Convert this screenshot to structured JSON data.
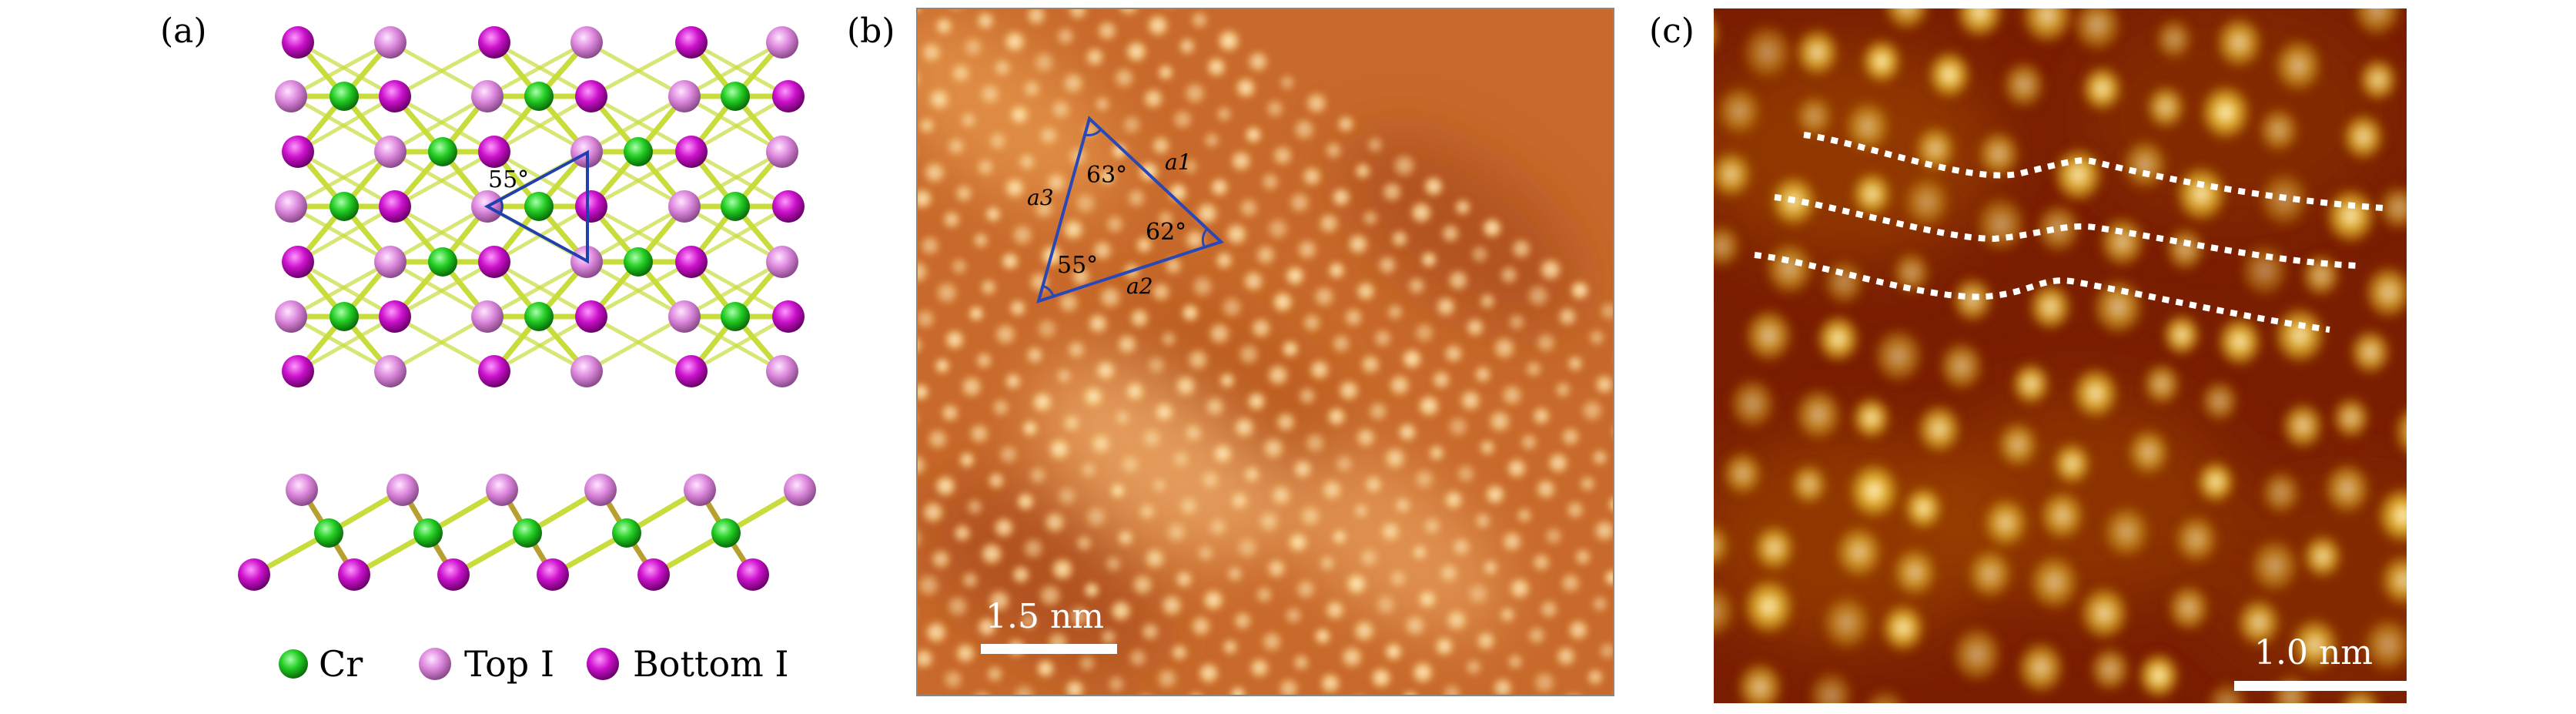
{
  "panels": {
    "a": {
      "label": "(a)",
      "triangle_angle": "55°",
      "legend": [
        {
          "label": "Cr",
          "color": "#22cc22"
        },
        {
          "label": "Top I",
          "color": "#dd88dd"
        },
        {
          "label": "Bottom I",
          "color": "#cc11cc"
        }
      ]
    },
    "b": {
      "label": "(b)",
      "angles": [
        "63°",
        "62°",
        "55°"
      ],
      "sides": [
        "a1",
        "a2",
        "a3"
      ],
      "scale_bar": "1.5 nm"
    },
    "c": {
      "label": "(c)",
      "scale_bar": "1.0 nm"
    }
  },
  "colors": {
    "bond": "#c8dc3c",
    "triangle": "#2040b0",
    "stm_b_bg": "#c86a2c",
    "stm_b_spot": "#ffe2aa",
    "stm_c_bg": "#7a1e02",
    "stm_c_spot": "#f0c640"
  }
}
